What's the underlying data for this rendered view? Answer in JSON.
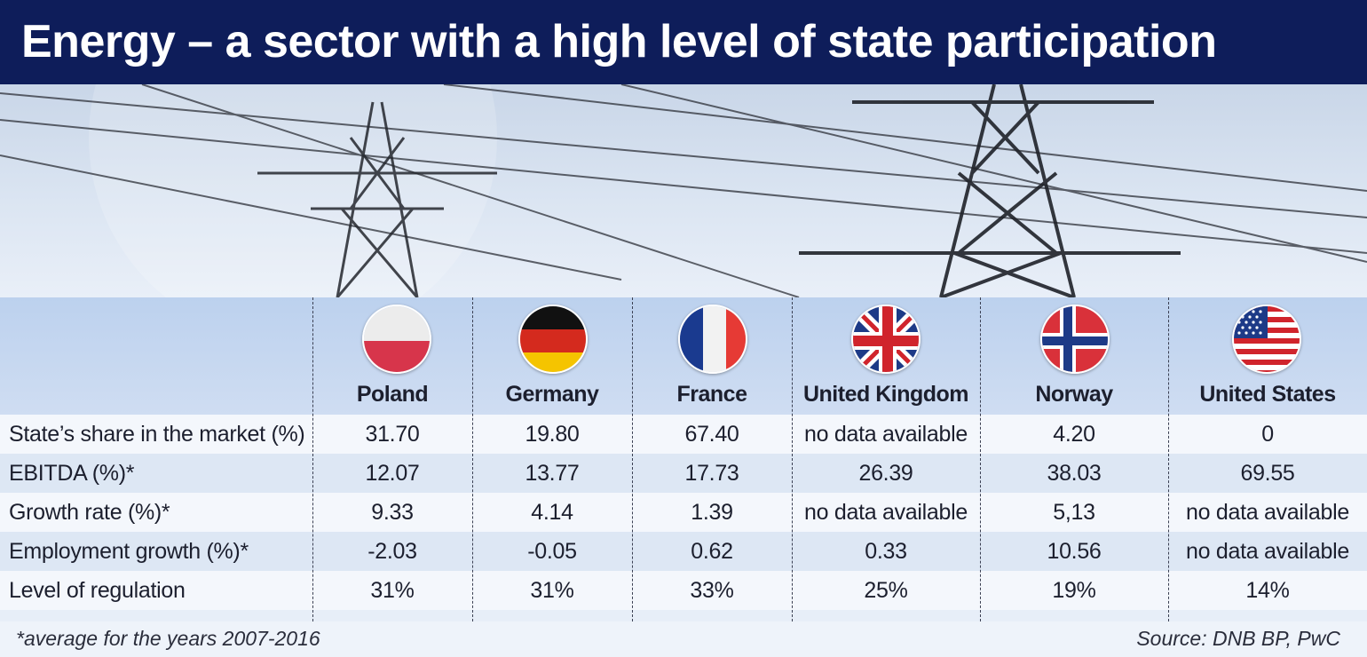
{
  "title": "Energy – a sector with a high level of state participation",
  "countries": [
    {
      "name": "Poland",
      "flag": "poland-flag-icon"
    },
    {
      "name": "Germany",
      "flag": "germany-flag-icon"
    },
    {
      "name": "France",
      "flag": "france-flag-icon"
    },
    {
      "name": "United Kingdom",
      "flag": "uk-flag-icon"
    },
    {
      "name": "Norway",
      "flag": "norway-flag-icon"
    },
    {
      "name": "United States",
      "flag": "usa-flag-icon"
    }
  ],
  "rows": [
    {
      "label": "State’s share in the market (%)",
      "values": [
        "31.70",
        "19.80",
        "67.40",
        "no data available",
        "4.20",
        "0"
      ]
    },
    {
      "label": "EBITDA (%)*",
      "values": [
        "12.07",
        "13.77",
        "17.73",
        "26.39",
        "38.03",
        "69.55"
      ]
    },
    {
      "label": "Growth rate (%)*",
      "values": [
        "9.33",
        "4.14",
        "1.39",
        "no data available",
        "5,13",
        "no data available"
      ]
    },
    {
      "label": "Employment growth (%)*",
      "values": [
        "-2.03",
        "-0.05",
        "0.62",
        "0.33",
        "10.56",
        "no data available"
      ]
    },
    {
      "label": "Level of regulation",
      "values": [
        "31%",
        "31%",
        "33%",
        "25%",
        "19%",
        "14%"
      ]
    }
  ],
  "footnote": "*average for the years 2007-2016",
  "source": "Source: DNB BP, PwC",
  "colors": {
    "title_bg": "#0e1d5a",
    "header_band": "#c5d7f0",
    "row_light": "#f4f7fc",
    "row_dark": "#dde7f4"
  }
}
